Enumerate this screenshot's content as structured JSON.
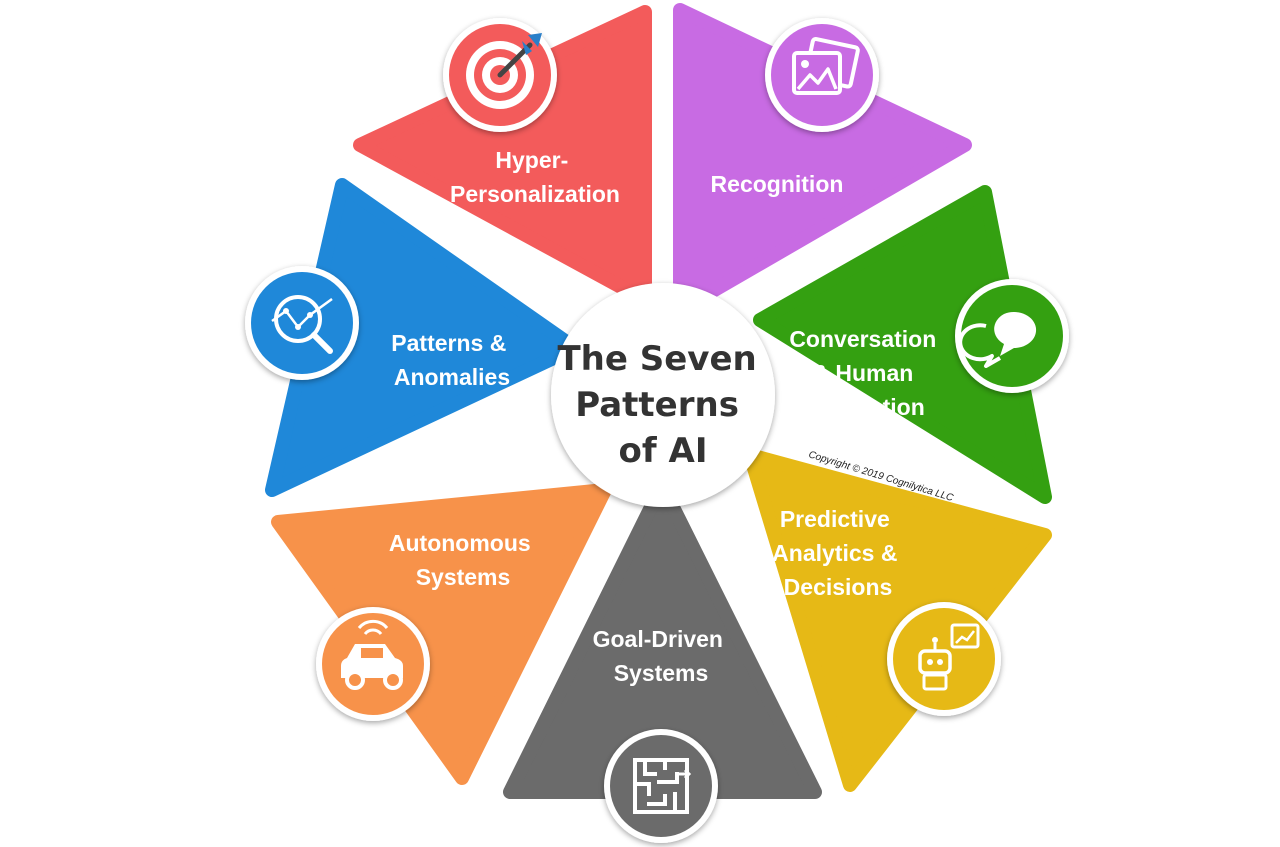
{
  "title_lines": [
    "The Seven",
    "Patterns",
    "of AI"
  ],
  "copyright": "Copyright © 2019 Cognilytica LLC",
  "segments": [
    {
      "id": "hyper-personalization",
      "lines": [
        "Hyper-",
        "Personalization"
      ],
      "color": "#f35b5b",
      "icon": "target-icon"
    },
    {
      "id": "recognition",
      "lines": [
        "Recognition"
      ],
      "color": "#c86be3",
      "icon": "image-icon"
    },
    {
      "id": "conversation",
      "lines": [
        "Conversation",
        "& Human",
        "Interaction"
      ],
      "color": "#34a011",
      "icon": "chat-icon"
    },
    {
      "id": "predictive-analytics",
      "lines": [
        "Predictive",
        "Analytics &",
        "Decisions"
      ],
      "color": "#e6b916",
      "icon": "robot-chart-icon"
    },
    {
      "id": "goal-driven",
      "lines": [
        "Goal-Driven",
        "Systems"
      ],
      "color": "#6b6b6b",
      "icon": "maze-icon"
    },
    {
      "id": "autonomous-systems",
      "lines": [
        "Autonomous",
        "Systems"
      ],
      "color": "#f7924a",
      "icon": "car-icon"
    },
    {
      "id": "patterns-anomalies",
      "lines": [
        "Patterns &",
        "Anomalies"
      ],
      "color": "#1f88d9",
      "icon": "magnifier-chart-icon"
    }
  ]
}
